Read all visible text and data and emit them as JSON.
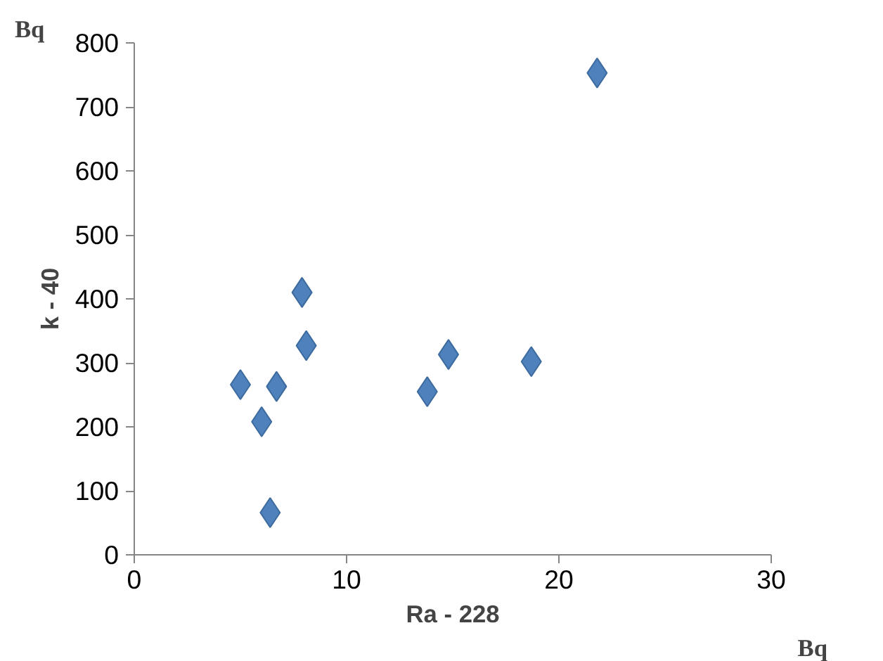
{
  "chart_data": {
    "type": "scatter",
    "xlabel": "Ra - 228",
    "ylabel": "k - 40",
    "annotations": [
      "Bq",
      "Bq"
    ],
    "x": [
      5.0,
      6.0,
      6.4,
      6.7,
      7.9,
      8.1,
      13.8,
      14.8,
      18.7,
      21.8
    ],
    "series": [
      {
        "color": "#4f81bd",
        "values": [
          266,
          208,
          66,
          263,
          410,
          327,
          255,
          313,
          302,
          753
        ]
      }
    ],
    "xlim": [
      0,
      30
    ],
    "xticks": [
      0,
      10,
      20,
      30
    ],
    "ylim": [
      0,
      800
    ],
    "yticks": [
      0,
      100,
      200,
      300,
      400,
      500,
      600,
      700,
      800
    ],
    "grid": false,
    "marker": "diamond"
  }
}
